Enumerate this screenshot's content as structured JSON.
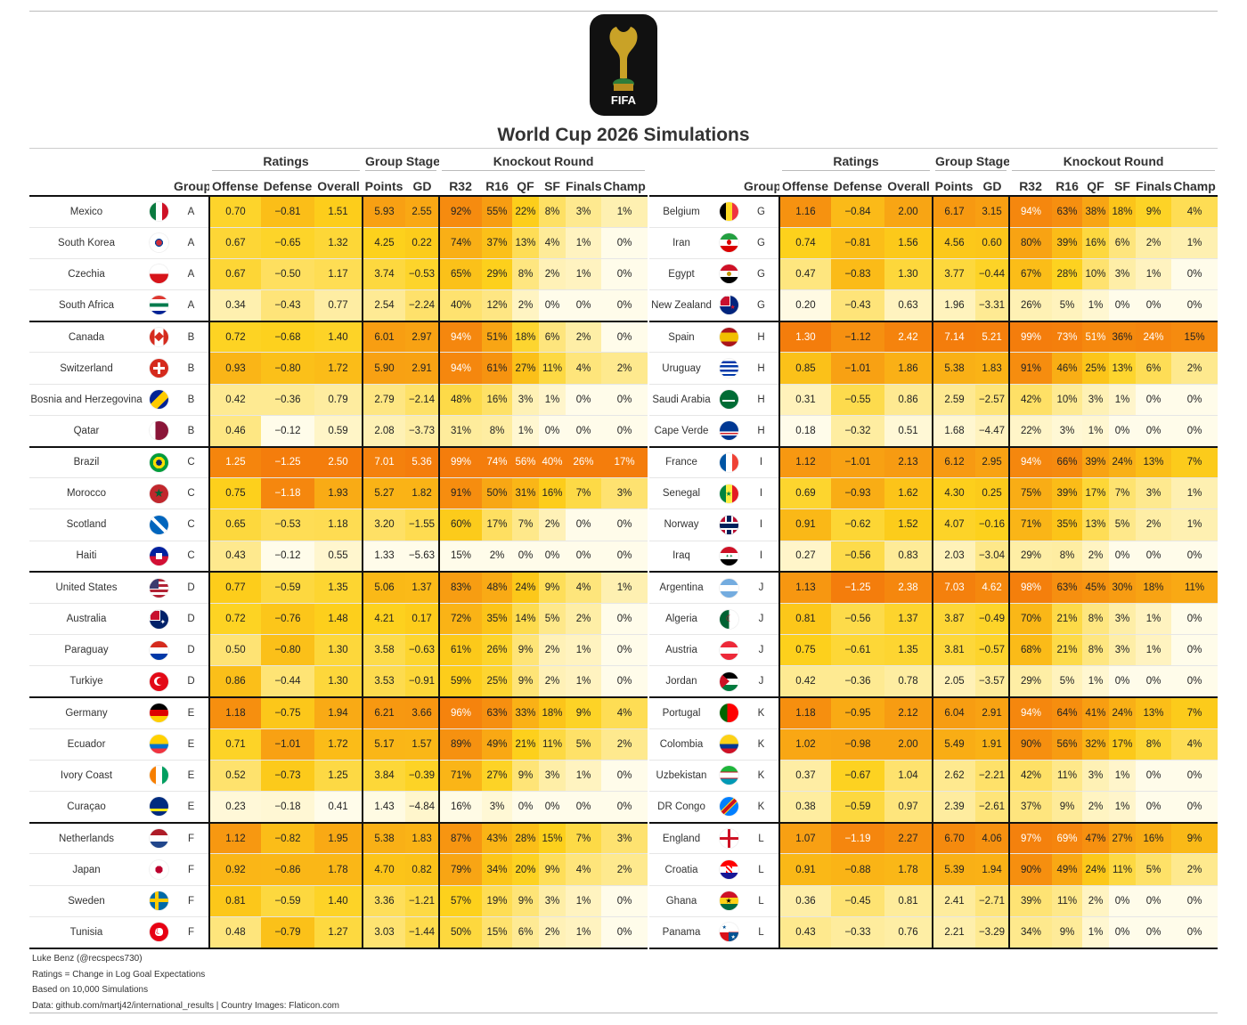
{
  "title": "World Cup 2026 Simulations",
  "logo": {
    "text": "FIFA"
  },
  "headers": {
    "spanners": {
      "ratings": "Ratings",
      "group_stage": "Group Stage",
      "knockout": "Knockout Round"
    },
    "columns": [
      "Group",
      "Offense",
      "Defense",
      "Overall",
      "Points",
      "GD",
      "R32",
      "R16",
      "QF",
      "SF",
      "Finals",
      "Champ"
    ]
  },
  "scale_colors": {
    "low": "#fffcea",
    "mid": "#fdd11c",
    "high": "#f47d0c"
  },
  "left_table": [
    {
      "team": "Mexico",
      "flag": "mexico-flag-icon",
      "group": "A",
      "off": "0.70",
      "def": "−0.81",
      "ovr": "1.51",
      "pts": "5.93",
      "gd": "2.55",
      "r32": "92%",
      "r16": "55%",
      "qf": "22%",
      "sf": "8%",
      "fin": "3%",
      "champ": "1%"
    },
    {
      "team": "South Korea",
      "flag": "south-korea-flag-icon",
      "group": "A",
      "off": "0.67",
      "def": "−0.65",
      "ovr": "1.32",
      "pts": "4.25",
      "gd": "0.22",
      "r32": "74%",
      "r16": "37%",
      "qf": "13%",
      "sf": "4%",
      "fin": "1%",
      "champ": "0%"
    },
    {
      "team": "Czechia",
      "flag": "czechia-flag-icon",
      "group": "A",
      "off": "0.67",
      "def": "−0.50",
      "ovr": "1.17",
      "pts": "3.74",
      "gd": "−0.53",
      "r32": "65%",
      "r16": "29%",
      "qf": "8%",
      "sf": "2%",
      "fin": "1%",
      "champ": "0%"
    },
    {
      "team": "South Africa",
      "flag": "south-africa-flag-icon",
      "group": "A",
      "off": "0.34",
      "def": "−0.43",
      "ovr": "0.77",
      "pts": "2.54",
      "gd": "−2.24",
      "r32": "40%",
      "r16": "12%",
      "qf": "2%",
      "sf": "0%",
      "fin": "0%",
      "champ": "0%"
    },
    {
      "team": "Canada",
      "flag": "canada-flag-icon",
      "group": "B",
      "off": "0.72",
      "def": "−0.68",
      "ovr": "1.40",
      "pts": "6.01",
      "gd": "2.97",
      "r32": "94%",
      "r16": "51%",
      "qf": "18%",
      "sf": "6%",
      "fin": "2%",
      "champ": "0%"
    },
    {
      "team": "Switzerland",
      "flag": "switzerland-flag-icon",
      "group": "B",
      "off": "0.93",
      "def": "−0.80",
      "ovr": "1.72",
      "pts": "5.90",
      "gd": "2.91",
      "r32": "94%",
      "r16": "61%",
      "qf": "27%",
      "sf": "11%",
      "fin": "4%",
      "champ": "2%"
    },
    {
      "team": "Bosnia and Herzegovina",
      "flag": "bosnia-flag-icon",
      "group": "B",
      "off": "0.42",
      "def": "−0.36",
      "ovr": "0.79",
      "pts": "2.79",
      "gd": "−2.14",
      "r32": "48%",
      "r16": "16%",
      "qf": "3%",
      "sf": "1%",
      "fin": "0%",
      "champ": "0%"
    },
    {
      "team": "Qatar",
      "flag": "qatar-flag-icon",
      "group": "B",
      "off": "0.46",
      "def": "−0.12",
      "ovr": "0.59",
      "pts": "2.08",
      "gd": "−3.73",
      "r32": "31%",
      "r16": "8%",
      "qf": "1%",
      "sf": "0%",
      "fin": "0%",
      "champ": "0%"
    },
    {
      "team": "Brazil",
      "flag": "brazil-flag-icon",
      "group": "C",
      "off": "1.25",
      "def": "−1.25",
      "ovr": "2.50",
      "pts": "7.01",
      "gd": "5.36",
      "r32": "99%",
      "r16": "74%",
      "qf": "56%",
      "sf": "40%",
      "fin": "26%",
      "champ": "17%"
    },
    {
      "team": "Morocco",
      "flag": "morocco-flag-icon",
      "group": "C",
      "off": "0.75",
      "def": "−1.18",
      "ovr": "1.93",
      "pts": "5.27",
      "gd": "1.82",
      "r32": "91%",
      "r16": "50%",
      "qf": "31%",
      "sf": "16%",
      "fin": "7%",
      "champ": "3%"
    },
    {
      "team": "Scotland",
      "flag": "scotland-flag-icon",
      "group": "C",
      "off": "0.65",
      "def": "−0.53",
      "ovr": "1.18",
      "pts": "3.20",
      "gd": "−1.55",
      "r32": "60%",
      "r16": "17%",
      "qf": "7%",
      "sf": "2%",
      "fin": "0%",
      "champ": "0%"
    },
    {
      "team": "Haiti",
      "flag": "haiti-flag-icon",
      "group": "C",
      "off": "0.43",
      "def": "−0.12",
      "ovr": "0.55",
      "pts": "1.33",
      "gd": "−5.63",
      "r32": "15%",
      "r16": "2%",
      "qf": "0%",
      "sf": "0%",
      "fin": "0%",
      "champ": "0%"
    },
    {
      "team": "United States",
      "flag": "usa-flag-icon",
      "group": "D",
      "off": "0.77",
      "def": "−0.59",
      "ovr": "1.35",
      "pts": "5.06",
      "gd": "1.37",
      "r32": "83%",
      "r16": "48%",
      "qf": "24%",
      "sf": "9%",
      "fin": "4%",
      "champ": "1%"
    },
    {
      "team": "Australia",
      "flag": "australia-flag-icon",
      "group": "D",
      "off": "0.72",
      "def": "−0.76",
      "ovr": "1.48",
      "pts": "4.21",
      "gd": "0.17",
      "r32": "72%",
      "r16": "35%",
      "qf": "14%",
      "sf": "5%",
      "fin": "2%",
      "champ": "0%"
    },
    {
      "team": "Paraguay",
      "flag": "paraguay-flag-icon",
      "group": "D",
      "off": "0.50",
      "def": "−0.80",
      "ovr": "1.30",
      "pts": "3.58",
      "gd": "−0.63",
      "r32": "61%",
      "r16": "26%",
      "qf": "9%",
      "sf": "2%",
      "fin": "1%",
      "champ": "0%"
    },
    {
      "team": "Turkiye",
      "flag": "turkiye-flag-icon",
      "group": "D",
      "off": "0.86",
      "def": "−0.44",
      "ovr": "1.30",
      "pts": "3.53",
      "gd": "−0.91",
      "r32": "59%",
      "r16": "25%",
      "qf": "9%",
      "sf": "2%",
      "fin": "1%",
      "champ": "0%"
    },
    {
      "team": "Germany",
      "flag": "germany-flag-icon",
      "group": "E",
      "off": "1.18",
      "def": "−0.75",
      "ovr": "1.94",
      "pts": "6.21",
      "gd": "3.66",
      "r32": "96%",
      "r16": "63%",
      "qf": "33%",
      "sf": "18%",
      "fin": "9%",
      "champ": "4%"
    },
    {
      "team": "Ecuador",
      "flag": "ecuador-flag-icon",
      "group": "E",
      "off": "0.71",
      "def": "−1.01",
      "ovr": "1.72",
      "pts": "5.17",
      "gd": "1.57",
      "r32": "89%",
      "r16": "49%",
      "qf": "21%",
      "sf": "11%",
      "fin": "5%",
      "champ": "2%"
    },
    {
      "team": "Ivory Coast",
      "flag": "ivory-coast-flag-icon",
      "group": "E",
      "off": "0.52",
      "def": "−0.73",
      "ovr": "1.25",
      "pts": "3.84",
      "gd": "−0.39",
      "r32": "71%",
      "r16": "27%",
      "qf": "9%",
      "sf": "3%",
      "fin": "1%",
      "champ": "0%"
    },
    {
      "team": "Curaçao",
      "flag": "curacao-flag-icon",
      "group": "E",
      "off": "0.23",
      "def": "−0.18",
      "ovr": "0.41",
      "pts": "1.43",
      "gd": "−4.84",
      "r32": "16%",
      "r16": "3%",
      "qf": "0%",
      "sf": "0%",
      "fin": "0%",
      "champ": "0%"
    },
    {
      "team": "Netherlands",
      "flag": "netherlands-flag-icon",
      "group": "F",
      "off": "1.12",
      "def": "−0.82",
      "ovr": "1.95",
      "pts": "5.38",
      "gd": "1.83",
      "r32": "87%",
      "r16": "43%",
      "qf": "28%",
      "sf": "15%",
      "fin": "7%",
      "champ": "3%"
    },
    {
      "team": "Japan",
      "flag": "japan-flag-icon",
      "group": "F",
      "off": "0.92",
      "def": "−0.86",
      "ovr": "1.78",
      "pts": "4.70",
      "gd": "0.82",
      "r32": "79%",
      "r16": "34%",
      "qf": "20%",
      "sf": "9%",
      "fin": "4%",
      "champ": "2%"
    },
    {
      "team": "Sweden",
      "flag": "sweden-flag-icon",
      "group": "F",
      "off": "0.81",
      "def": "−0.59",
      "ovr": "1.40",
      "pts": "3.36",
      "gd": "−1.21",
      "r32": "57%",
      "r16": "19%",
      "qf": "9%",
      "sf": "3%",
      "fin": "1%",
      "champ": "0%"
    },
    {
      "team": "Tunisia",
      "flag": "tunisia-flag-icon",
      "group": "F",
      "off": "0.48",
      "def": "−0.79",
      "ovr": "1.27",
      "pts": "3.03",
      "gd": "−1.44",
      "r32": "50%",
      "r16": "15%",
      "qf": "6%",
      "sf": "2%",
      "fin": "1%",
      "champ": "0%"
    }
  ],
  "right_table": [
    {
      "team": "Belgium",
      "flag": "belgium-flag-icon",
      "group": "G",
      "off": "1.16",
      "def": "−0.84",
      "ovr": "2.00",
      "pts": "6.17",
      "gd": "3.15",
      "r32": "94%",
      "r16": "63%",
      "qf": "38%",
      "sf": "18%",
      "fin": "9%",
      "champ": "4%"
    },
    {
      "team": "Iran",
      "flag": "iran-flag-icon",
      "group": "G",
      "off": "0.74",
      "def": "−0.81",
      "ovr": "1.56",
      "pts": "4.56",
      "gd": "0.60",
      "r32": "80%",
      "r16": "39%",
      "qf": "16%",
      "sf": "6%",
      "fin": "2%",
      "champ": "1%"
    },
    {
      "team": "Egypt",
      "flag": "egypt-flag-icon",
      "group": "G",
      "off": "0.47",
      "def": "−0.83",
      "ovr": "1.30",
      "pts": "3.77",
      "gd": "−0.44",
      "r32": "67%",
      "r16": "28%",
      "qf": "10%",
      "sf": "3%",
      "fin": "1%",
      "champ": "0%"
    },
    {
      "team": "New Zealand",
      "flag": "new-zealand-flag-icon",
      "group": "G",
      "off": "0.20",
      "def": "−0.43",
      "ovr": "0.63",
      "pts": "1.96",
      "gd": "−3.31",
      "r32": "26%",
      "r16": "5%",
      "qf": "1%",
      "sf": "0%",
      "fin": "0%",
      "champ": "0%"
    },
    {
      "team": "Spain",
      "flag": "spain-flag-icon",
      "group": "H",
      "off": "1.30",
      "def": "−1.12",
      "ovr": "2.42",
      "pts": "7.14",
      "gd": "5.21",
      "r32": "99%",
      "r16": "73%",
      "qf": "51%",
      "sf": "36%",
      "fin": "24%",
      "champ": "15%"
    },
    {
      "team": "Uruguay",
      "flag": "uruguay-flag-icon",
      "group": "H",
      "off": "0.85",
      "def": "−1.01",
      "ovr": "1.86",
      "pts": "5.38",
      "gd": "1.83",
      "r32": "91%",
      "r16": "46%",
      "qf": "25%",
      "sf": "13%",
      "fin": "6%",
      "champ": "2%"
    },
    {
      "team": "Saudi Arabia",
      "flag": "saudi-arabia-flag-icon",
      "group": "H",
      "off": "0.31",
      "def": "−0.55",
      "ovr": "0.86",
      "pts": "2.59",
      "gd": "−2.57",
      "r32": "42%",
      "r16": "10%",
      "qf": "3%",
      "sf": "1%",
      "fin": "0%",
      "champ": "0%"
    },
    {
      "team": "Cape Verde",
      "flag": "cape-verde-flag-icon",
      "group": "H",
      "off": "0.18",
      "def": "−0.32",
      "ovr": "0.51",
      "pts": "1.68",
      "gd": "−4.47",
      "r32": "22%",
      "r16": "3%",
      "qf": "1%",
      "sf": "0%",
      "fin": "0%",
      "champ": "0%"
    },
    {
      "team": "France",
      "flag": "france-flag-icon",
      "group": "I",
      "off": "1.12",
      "def": "−1.01",
      "ovr": "2.13",
      "pts": "6.12",
      "gd": "2.95",
      "r32": "94%",
      "r16": "66%",
      "qf": "39%",
      "sf": "24%",
      "fin": "13%",
      "champ": "7%"
    },
    {
      "team": "Senegal",
      "flag": "senegal-flag-icon",
      "group": "I",
      "off": "0.69",
      "def": "−0.93",
      "ovr": "1.62",
      "pts": "4.30",
      "gd": "0.25",
      "r32": "75%",
      "r16": "39%",
      "qf": "17%",
      "sf": "7%",
      "fin": "3%",
      "champ": "1%"
    },
    {
      "team": "Norway",
      "flag": "norway-flag-icon",
      "group": "I",
      "off": "0.91",
      "def": "−0.62",
      "ovr": "1.52",
      "pts": "4.07",
      "gd": "−0.16",
      "r32": "71%",
      "r16": "35%",
      "qf": "13%",
      "sf": "5%",
      "fin": "2%",
      "champ": "1%"
    },
    {
      "team": "Iraq",
      "flag": "iraq-flag-icon",
      "group": "I",
      "off": "0.27",
      "def": "−0.56",
      "ovr": "0.83",
      "pts": "2.03",
      "gd": "−3.04",
      "r32": "29%",
      "r16": "8%",
      "qf": "2%",
      "sf": "0%",
      "fin": "0%",
      "champ": "0%"
    },
    {
      "team": "Argentina",
      "flag": "argentina-flag-icon",
      "group": "J",
      "off": "1.13",
      "def": "−1.25",
      "ovr": "2.38",
      "pts": "7.03",
      "gd": "4.62",
      "r32": "98%",
      "r16": "63%",
      "qf": "45%",
      "sf": "30%",
      "fin": "18%",
      "champ": "11%"
    },
    {
      "team": "Algeria",
      "flag": "algeria-flag-icon",
      "group": "J",
      "off": "0.81",
      "def": "−0.56",
      "ovr": "1.37",
      "pts": "3.87",
      "gd": "−0.49",
      "r32": "70%",
      "r16": "21%",
      "qf": "8%",
      "sf": "3%",
      "fin": "1%",
      "champ": "0%"
    },
    {
      "team": "Austria",
      "flag": "austria-flag-icon",
      "group": "J",
      "off": "0.75",
      "def": "−0.61",
      "ovr": "1.35",
      "pts": "3.81",
      "gd": "−0.57",
      "r32": "68%",
      "r16": "21%",
      "qf": "8%",
      "sf": "3%",
      "fin": "1%",
      "champ": "0%"
    },
    {
      "team": "Jordan",
      "flag": "jordan-flag-icon",
      "group": "J",
      "off": "0.42",
      "def": "−0.36",
      "ovr": "0.78",
      "pts": "2.05",
      "gd": "−3.57",
      "r32": "29%",
      "r16": "5%",
      "qf": "1%",
      "sf": "0%",
      "fin": "0%",
      "champ": "0%"
    },
    {
      "team": "Portugal",
      "flag": "portugal-flag-icon",
      "group": "K",
      "off": "1.18",
      "def": "−0.95",
      "ovr": "2.12",
      "pts": "6.04",
      "gd": "2.91",
      "r32": "94%",
      "r16": "64%",
      "qf": "41%",
      "sf": "24%",
      "fin": "13%",
      "champ": "7%"
    },
    {
      "team": "Colombia",
      "flag": "colombia-flag-icon",
      "group": "K",
      "off": "1.02",
      "def": "−0.98",
      "ovr": "2.00",
      "pts": "5.49",
      "gd": "1.91",
      "r32": "90%",
      "r16": "56%",
      "qf": "32%",
      "sf": "17%",
      "fin": "8%",
      "champ": "4%"
    },
    {
      "team": "Uzbekistan",
      "flag": "uzbekistan-flag-icon",
      "group": "K",
      "off": "0.37",
      "def": "−0.67",
      "ovr": "1.04",
      "pts": "2.62",
      "gd": "−2.21",
      "r32": "42%",
      "r16": "11%",
      "qf": "3%",
      "sf": "1%",
      "fin": "0%",
      "champ": "0%"
    },
    {
      "team": "DR Congo",
      "flag": "dr-congo-flag-icon",
      "group": "K",
      "off": "0.38",
      "def": "−0.59",
      "ovr": "0.97",
      "pts": "2.39",
      "gd": "−2.61",
      "r32": "37%",
      "r16": "9%",
      "qf": "2%",
      "sf": "1%",
      "fin": "0%",
      "champ": "0%"
    },
    {
      "team": "England",
      "flag": "england-flag-icon",
      "group": "L",
      "off": "1.07",
      "def": "−1.19",
      "ovr": "2.27",
      "pts": "6.70",
      "gd": "4.06",
      "r32": "97%",
      "r16": "69%",
      "qf": "47%",
      "sf": "27%",
      "fin": "16%",
      "champ": "9%"
    },
    {
      "team": "Croatia",
      "flag": "croatia-flag-icon",
      "group": "L",
      "off": "0.91",
      "def": "−0.88",
      "ovr": "1.78",
      "pts": "5.39",
      "gd": "1.94",
      "r32": "90%",
      "r16": "49%",
      "qf": "24%",
      "sf": "11%",
      "fin": "5%",
      "champ": "2%"
    },
    {
      "team": "Ghana",
      "flag": "ghana-flag-icon",
      "group": "L",
      "off": "0.36",
      "def": "−0.45",
      "ovr": "0.81",
      "pts": "2.41",
      "gd": "−2.71",
      "r32": "39%",
      "r16": "11%",
      "qf": "2%",
      "sf": "0%",
      "fin": "0%",
      "champ": "0%"
    },
    {
      "team": "Panama",
      "flag": "panama-flag-icon",
      "group": "L",
      "off": "0.43",
      "def": "−0.33",
      "ovr": "0.76",
      "pts": "2.21",
      "gd": "−3.29",
      "r32": "34%",
      "r16": "9%",
      "qf": "1%",
      "sf": "0%",
      "fin": "0%",
      "champ": "0%"
    }
  ],
  "footer": [
    "Luke Benz (@recspecs730)",
    "Ratings = Change in Log Goal Expectations",
    "Based on 10,000 Simulations",
    "Data: github.com/martj42/international_results | Country Images: Flaticon.com"
  ]
}
